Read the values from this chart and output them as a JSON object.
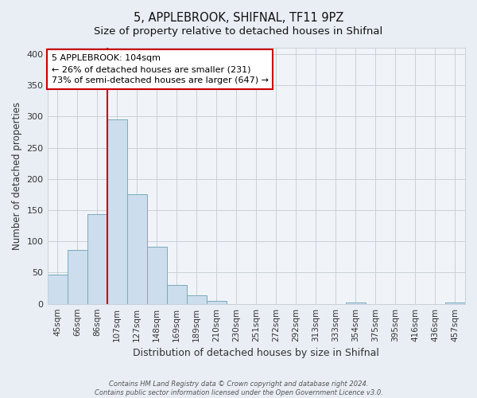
{
  "title": "5, APPLEBROOK, SHIFNAL, TF11 9PZ",
  "subtitle": "Size of property relative to detached houses in Shifnal",
  "xlabel": "Distribution of detached houses by size in Shifnal",
  "ylabel": "Number of detached properties",
  "bar_labels": [
    "45sqm",
    "66sqm",
    "86sqm",
    "107sqm",
    "127sqm",
    "148sqm",
    "169sqm",
    "189sqm",
    "210sqm",
    "230sqm",
    "251sqm",
    "272sqm",
    "292sqm",
    "313sqm",
    "333sqm",
    "354sqm",
    "375sqm",
    "395sqm",
    "416sqm",
    "436sqm",
    "457sqm"
  ],
  "bar_values": [
    47,
    86,
    144,
    295,
    175,
    91,
    30,
    14,
    5,
    0,
    0,
    0,
    0,
    0,
    0,
    2,
    0,
    0,
    0,
    0,
    2
  ],
  "bar_color": "#ccdded",
  "bar_edge_color": "#7aaabb",
  "ylim": [
    0,
    410
  ],
  "yticks": [
    0,
    50,
    100,
    150,
    200,
    250,
    300,
    350,
    400
  ],
  "vline_index": 3,
  "vline_color": "#cc0000",
  "annot_line1": "5 APPLEBROOK: 104sqm",
  "annot_line2": "← 26% of detached houses are smaller (231)",
  "annot_line3": "73% of semi-detached houses are larger (647) →",
  "annotation_box_color": "#ffffff",
  "annotation_box_edge": "#cc0000",
  "footer_line1": "Contains HM Land Registry data © Crown copyright and database right 2024.",
  "footer_line2": "Contains public sector information licensed under the Open Government Licence v3.0.",
  "background_color": "#e8eef4",
  "plot_bg_color": "#f0f4f8",
  "grid_color": "#c8d0d8"
}
